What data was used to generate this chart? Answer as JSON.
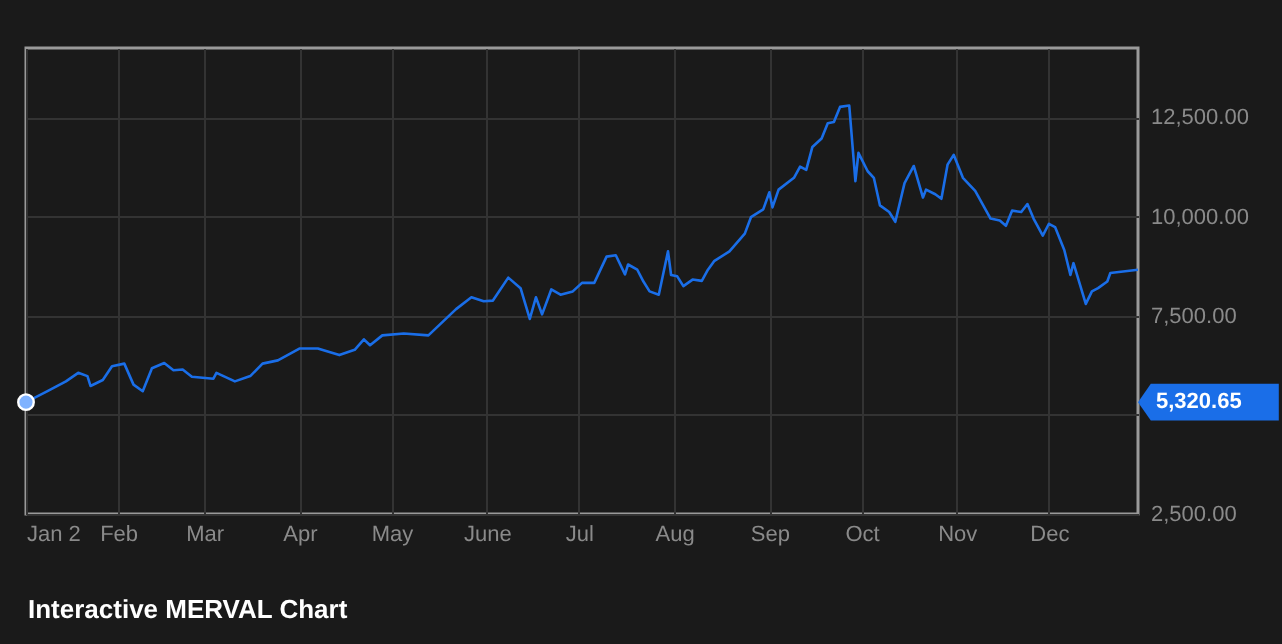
{
  "chart_data": {
    "type": "line",
    "title": "Interactive MERVAL Chart",
    "x": [
      "--01-02",
      "--01-09",
      "--01-15",
      "--01-19",
      "--01-22",
      "--01-23",
      "--01-27",
      "--01-30",
      "--02-03",
      "--02-06",
      "--02-09",
      "--02-12",
      "--02-16",
      "--02-19",
      "--02-22",
      "--02-25",
      "--03-04",
      "--03-05",
      "--03-11",
      "--03-16",
      "--03-20",
      "--03-25",
      "--04-01",
      "--04-07",
      "--04-14",
      "--04-19",
      "--04-22",
      "--04-24",
      "--04-28",
      "--05-05",
      "--05-13",
      "--05-22",
      "--05-27",
      "--05-31",
      "--06-03",
      "--06-08",
      "--06-12",
      "--06-15",
      "--06-17",
      "--06-19",
      "--06-22",
      "--06-25",
      "--06-29",
      "--07-02",
      "--07-06",
      "--07-10",
      "--07-13",
      "--07-16",
      "--07-17",
      "--07-20",
      "--07-22",
      "--07-24",
      "--07-27",
      "--07-30",
      "--07-31",
      "--08-02",
      "--08-04",
      "--08-07",
      "--08-10",
      "--08-12",
      "--08-14",
      "--08-19",
      "--08-24",
      "--08-26",
      "--08-30",
      "--09-01",
      "--09-02",
      "--09-04",
      "--09-09",
      "--09-11",
      "--09-13",
      "--09-15",
      "--09-18",
      "--09-20",
      "--09-22",
      "--09-24",
      "--09-27",
      "--09-29",
      "--09-30",
      "--10-03",
      "--10-05",
      "--10-07",
      "--10-10",
      "--10-12",
      "--10-15",
      "--10-18",
      "--10-21",
      "--10-22",
      "--10-25",
      "--10-27",
      "--10-29",
      "--10-31",
      "--11-03",
      "--11-07",
      "--11-12",
      "--11-15",
      "--11-17",
      "--11-19",
      "--11-22",
      "--11-24",
      "--11-26",
      "--11-29",
      "--12-01",
      "--12-03",
      "--12-06",
      "--12-08",
      "--12-09",
      "--12-13",
      "--12-15",
      "--12-17",
      "--12-20",
      "--12-21",
      "--12-30"
    ],
    "series": [
      {
        "color": "#1a6ee8",
        "values": [
          5320.65,
          5596,
          5844,
          6060,
          5977,
          5728,
          5878,
          6225,
          6292,
          5762,
          5596,
          6176,
          6308,
          6126,
          6143,
          5960,
          5911,
          6060,
          5844,
          5977,
          6292,
          6374,
          6672,
          6672,
          6507,
          6640,
          6904,
          6755,
          7004,
          7053,
          7004,
          7666,
          7964,
          7864,
          7881,
          8460,
          8195,
          7417,
          7964,
          7533,
          8162,
          8030,
          8113,
          8328,
          8328,
          8990,
          9023,
          8543,
          8791,
          8659,
          8361,
          8113,
          8030,
          9123,
          8527,
          8493,
          8245,
          8411,
          8378,
          8659,
          8874,
          9123,
          9570,
          9984,
          10182,
          10613,
          10232,
          10679,
          10977,
          11258,
          11175,
          11755,
          11970,
          12351,
          12384,
          12765,
          12798,
          10894,
          11606,
          11142,
          10977,
          10281,
          10116,
          9868,
          10844,
          11275,
          10480,
          10679,
          10563,
          10447,
          11308,
          11556,
          10977,
          10646,
          9950,
          9901,
          9768,
          10149,
          10116,
          10315,
          9950,
          9520,
          9818,
          9735,
          9156,
          8527,
          8825,
          7798,
          8113,
          8195,
          8361,
          8576,
          8659
        ]
      }
    ],
    "xlim": [
      "--01-02",
      "--12-30"
    ],
    "xticks": [
      {
        "value": "--01-02",
        "label": "Jan 2"
      },
      {
        "value": "--02-01",
        "label": "Feb"
      },
      {
        "value": "--03-01",
        "label": "Mar"
      },
      {
        "value": "--04-01",
        "label": "Apr"
      },
      {
        "value": "--05-01",
        "label": "May"
      },
      {
        "value": "--06-01",
        "label": "June"
      },
      {
        "value": "--07-01",
        "label": "Jul"
      },
      {
        "value": "--08-01",
        "label": "Aug"
      },
      {
        "value": "--09-01",
        "label": "Sep"
      },
      {
        "value": "--10-01",
        "label": "Oct"
      },
      {
        "value": "--11-01",
        "label": "Nov"
      },
      {
        "value": "--12-01",
        "label": "Dec"
      }
    ],
    "ylim": [
      2500,
      14250
    ],
    "yticks": [
      {
        "value": 2500,
        "label": "2,500.00"
      },
      {
        "value": 5000,
        "label": null
      },
      {
        "value": 7500,
        "label": "7,500.00"
      },
      {
        "value": 10000,
        "label": "10,000.00"
      },
      {
        "value": 12500,
        "label": "12,500.00"
      }
    ],
    "annotations": [
      "5,320.65"
    ],
    "grid": true,
    "legend": false
  }
}
